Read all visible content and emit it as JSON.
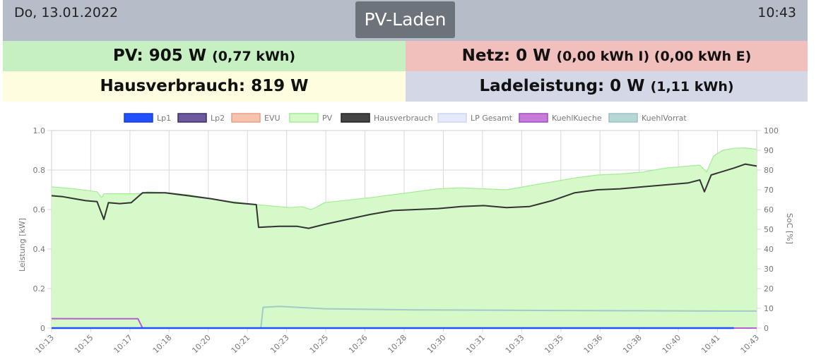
{
  "header": {
    "date": "Do, 13.01.2022",
    "title": "PV-Laden",
    "time": "10:43"
  },
  "panels": {
    "pv": {
      "label": "PV: 905 W",
      "sub": "(0,77 kWh)"
    },
    "netz": {
      "label": "Netz: 0 W",
      "sub": "(0,00 kWh I) (0,00 kWh E)"
    },
    "haus": {
      "label": "Hausverbrauch: 819 W",
      "sub": ""
    },
    "lade": {
      "label": "Ladeleistung: 0 W",
      "sub": "(1,11 kWh)"
    }
  },
  "colors": {
    "topbar": "#b6bcc8",
    "title_bg": "#6d737a",
    "pv_panel": "#c6f0c2",
    "netz_panel": "#f1c0bd",
    "haus_panel": "#fffde0",
    "lade_panel": "#d3d7e6"
  },
  "chart_data": {
    "type": "line",
    "ylabel": "Leistung [kW]",
    "y2label": "SoC [%]",
    "ylim": [
      0,
      1.0
    ],
    "y2lim": [
      0,
      100
    ],
    "grid": true,
    "legend_position": "top-center",
    "y_ticks": [
      "0",
      "0.2",
      "0.4",
      "0.6",
      "0.8",
      "1.0"
    ],
    "y2_ticks": [
      "0",
      "10",
      "20",
      "30",
      "40",
      "50",
      "60",
      "70",
      "80",
      "90",
      "100"
    ],
    "x_labels": [
      "10:13",
      "10:15",
      "10:17",
      "10:18",
      "10:20",
      "10:21",
      "10:23",
      "10:25",
      "10:26",
      "10:28",
      "10:30",
      "10:31",
      "10:33",
      "10:35",
      "10:36",
      "10:38",
      "10:40",
      "10:41",
      "10:43"
    ],
    "x_range_minutes": [
      0,
      30
    ],
    "series": [
      {
        "name": "Lp1",
        "color": "#2050ff",
        "axis": "left",
        "points": [
          [
            0,
            0.0
          ],
          [
            30,
            0.0
          ]
        ]
      },
      {
        "name": "Lp2",
        "color": "#6d5a9e",
        "axis": "left",
        "points": [
          [
            0,
            0.0
          ],
          [
            30,
            0.0
          ]
        ]
      },
      {
        "name": "EVU",
        "color": "#f2b39e",
        "axis": "left",
        "points": [
          [
            0,
            0.0
          ],
          [
            30,
            0.0
          ]
        ]
      },
      {
        "name": "PV",
        "color": "#a3ec96",
        "fill": "#d5f9c8",
        "axis": "left",
        "points": [
          [
            0,
            0.715
          ],
          [
            1,
            0.705
          ],
          [
            2,
            0.69
          ],
          [
            2.2,
            0.66
          ],
          [
            2.3,
            0.68
          ],
          [
            4,
            0.68
          ],
          [
            4.2,
            0.69
          ],
          [
            5,
            0.685
          ],
          [
            6,
            0.675
          ],
          [
            7,
            0.655
          ],
          [
            8,
            0.64
          ],
          [
            9,
            0.625
          ],
          [
            10,
            0.615
          ],
          [
            10.5,
            0.61
          ],
          [
            11,
            0.615
          ],
          [
            11.4,
            0.6
          ],
          [
            11.7,
            0.615
          ],
          [
            12,
            0.635
          ],
          [
            14,
            0.66
          ],
          [
            15,
            0.675
          ],
          [
            16,
            0.69
          ],
          [
            17,
            0.705
          ],
          [
            18,
            0.71
          ],
          [
            19,
            0.705
          ],
          [
            20,
            0.7
          ],
          [
            21,
            0.72
          ],
          [
            22,
            0.74
          ],
          [
            23,
            0.76
          ],
          [
            24,
            0.775
          ],
          [
            25,
            0.78
          ],
          [
            26,
            0.79
          ],
          [
            27,
            0.81
          ],
          [
            28,
            0.82
          ],
          [
            28.5,
            0.825
          ],
          [
            28.8,
            0.79
          ],
          [
            29.1,
            0.87
          ],
          [
            29.5,
            0.9
          ],
          [
            30,
            0.91
          ],
          [
            30.5,
            0.912
          ],
          [
            31,
            0.905
          ]
        ]
      },
      {
        "name": "Hausverbrauch",
        "color": "#333333",
        "axis": "left",
        "points": [
          [
            0,
            0.67
          ],
          [
            0.5,
            0.665
          ],
          [
            1,
            0.655
          ],
          [
            1.5,
            0.645
          ],
          [
            2,
            0.64
          ],
          [
            2.3,
            0.55
          ],
          [
            2.5,
            0.635
          ],
          [
            3,
            0.63
          ],
          [
            3.5,
            0.635
          ],
          [
            4,
            0.685
          ],
          [
            5,
            0.685
          ],
          [
            6,
            0.67
          ],
          [
            7,
            0.655
          ],
          [
            8,
            0.635
          ],
          [
            9,
            0.625
          ],
          [
            9.1,
            0.51
          ],
          [
            10,
            0.515
          ],
          [
            10.8,
            0.515
          ],
          [
            11.3,
            0.505
          ],
          [
            12,
            0.525
          ],
          [
            13,
            0.55
          ],
          [
            14,
            0.575
          ],
          [
            15,
            0.595
          ],
          [
            16,
            0.6
          ],
          [
            17,
            0.605
          ],
          [
            18,
            0.615
          ],
          [
            19,
            0.62
          ],
          [
            20,
            0.61
          ],
          [
            21,
            0.615
          ],
          [
            22,
            0.645
          ],
          [
            23,
            0.685
          ],
          [
            24,
            0.7
          ],
          [
            25,
            0.705
          ],
          [
            26,
            0.715
          ],
          [
            27,
            0.725
          ],
          [
            28,
            0.735
          ],
          [
            28.5,
            0.75
          ],
          [
            28.7,
            0.69
          ],
          [
            29,
            0.775
          ],
          [
            30,
            0.81
          ],
          [
            30.5,
            0.83
          ],
          [
            31,
            0.82
          ]
        ]
      },
      {
        "name": "LP Gesamt",
        "color": "#d5dcf8",
        "axis": "left",
        "points": [
          [
            0,
            0.0
          ],
          [
            30,
            0.0
          ]
        ]
      },
      {
        "name": "KuehlKueche",
        "color": "#b65fcf",
        "axis": "left",
        "points": [
          [
            0,
            0.048
          ],
          [
            3.8,
            0.047
          ],
          [
            4,
            0.0
          ],
          [
            31,
            0.0
          ]
        ]
      },
      {
        "name": "KuehlVorrat",
        "color": "#a3c9c9",
        "axis": "left",
        "points": [
          [
            0,
            0.0
          ],
          [
            9.2,
            0.0
          ],
          [
            9.3,
            0.105
          ],
          [
            10,
            0.11
          ],
          [
            12,
            0.098
          ],
          [
            16,
            0.092
          ],
          [
            20,
            0.09
          ],
          [
            25,
            0.088
          ],
          [
            30,
            0.086
          ],
          [
            31,
            0.086
          ]
        ]
      }
    ]
  }
}
